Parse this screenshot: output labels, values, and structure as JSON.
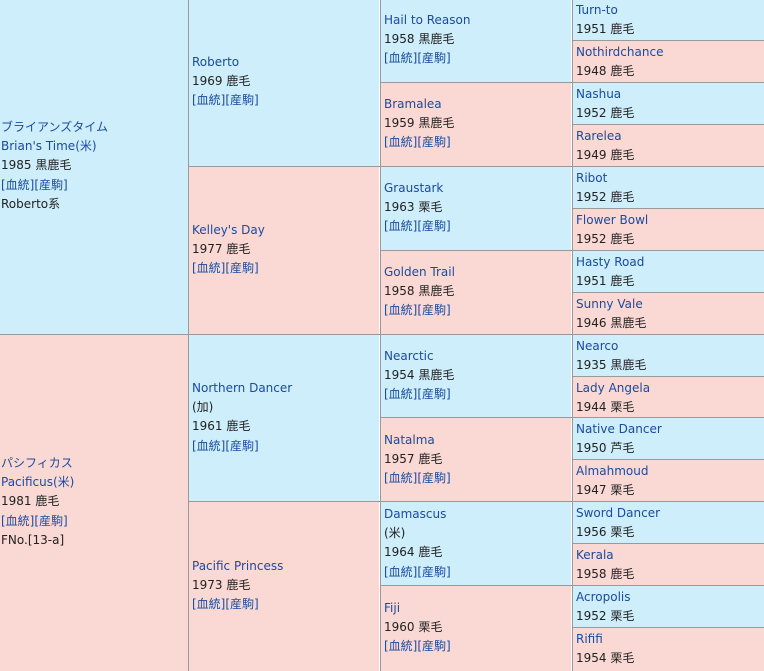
{
  "gen1": [
    {
      "name_ja": "ブライアンズタイム",
      "name_en": "Brian's Time(米)",
      "year_color": "1985 黒鹿毛",
      "links": [
        "[血統]",
        "[産駒]"
      ],
      "extra": "Roberto系"
    },
    {
      "name_ja": "パシフィカス",
      "name_en": "Pacificus(米)",
      "year_color": "1981 鹿毛",
      "links": [
        "[血統]",
        "[産駒]"
      ],
      "extra": "FNo.[13-a]"
    }
  ],
  "gen2": [
    {
      "name": "Roberto",
      "year_color": "1969 鹿毛",
      "links": [
        "[血統]",
        "[産駒]"
      ]
    },
    {
      "name": "Kelley's Day",
      "year_color": "1977 鹿毛",
      "links": [
        "[血統]",
        "[産駒]"
      ]
    },
    {
      "name": "Northern Dancer",
      "note": "(加)",
      "year_color": "1961 鹿毛",
      "links": [
        "[血統]",
        "[産駒]"
      ]
    },
    {
      "name": "Pacific Princess",
      "year_color": "1973 鹿毛",
      "links": [
        "[血統]",
        "[産駒]"
      ]
    }
  ],
  "gen3": [
    {
      "name": "Hail to Reason",
      "year_color": "1958 黒鹿毛",
      "links": [
        "[血統]",
        "[産駒]"
      ]
    },
    {
      "name": "Bramalea",
      "year_color": "1959 黒鹿毛",
      "links": [
        "[血統]",
        "[産駒]"
      ]
    },
    {
      "name": "Graustark",
      "year_color": "1963 栗毛",
      "links": [
        "[血統]",
        "[産駒]"
      ]
    },
    {
      "name": "Golden Trail",
      "year_color": "1958 黒鹿毛",
      "links": [
        "[血統]",
        "[産駒]"
      ]
    },
    {
      "name": "Nearctic",
      "year_color": "1954 黒鹿毛",
      "links": [
        "[血統]",
        "[産駒]"
      ]
    },
    {
      "name": "Natalma",
      "year_color": "1957 鹿毛",
      "links": [
        "[血統]",
        "[産駒]"
      ]
    },
    {
      "name": "Damascus",
      "note": "(米)",
      "year_color": "1964 鹿毛",
      "links": [
        "[血統]",
        "[産駒]"
      ]
    },
    {
      "name": "Fiji",
      "year_color": "1960 栗毛",
      "links": [
        "[血統]",
        "[産駒]"
      ]
    }
  ],
  "gen4": [
    {
      "name": "Turn-to",
      "year_color": "1951 鹿毛"
    },
    {
      "name": "Nothirdchance",
      "year_color": "1948 鹿毛"
    },
    {
      "name": "Nashua",
      "year_color": "1952 鹿毛"
    },
    {
      "name": "Rarelea",
      "year_color": "1949 鹿毛"
    },
    {
      "name": "Ribot",
      "year_color": "1952 鹿毛"
    },
    {
      "name": "Flower Bowl",
      "year_color": "1952 鹿毛"
    },
    {
      "name": "Hasty Road",
      "year_color": "1951 鹿毛"
    },
    {
      "name": "Sunny Vale",
      "year_color": "1946 黒鹿毛"
    },
    {
      "name": "Nearco",
      "year_color": "1935 黒鹿毛"
    },
    {
      "name": "Lady Angela",
      "year_color": "1944 栗毛"
    },
    {
      "name": "Native Dancer",
      "year_color": "1950 芦毛"
    },
    {
      "name": "Almahmoud",
      "year_color": "1947 栗毛"
    },
    {
      "name": "Sword Dancer",
      "year_color": "1956 栗毛"
    },
    {
      "name": "Kerala",
      "year_color": "1958 鹿毛"
    },
    {
      "name": "Acropolis",
      "year_color": "1952 栗毛"
    },
    {
      "name": "Rififi",
      "year_color": "1954 栗毛"
    }
  ],
  "colors": {
    "male_bg": "#cdeefa",
    "female_bg": "#fad9d5",
    "link": "#1a4ba0",
    "border": "#9a9a9a"
  }
}
